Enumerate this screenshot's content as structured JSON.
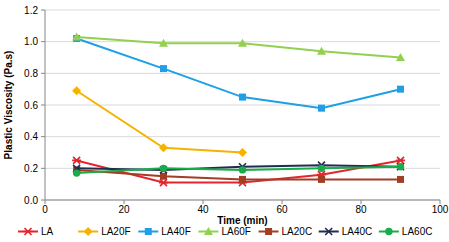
{
  "chart_data": {
    "type": "line",
    "x_label": "Time (min)",
    "y_label": "Plastic Viscosity (Pa.s)",
    "xlim": [
      0,
      100
    ],
    "xticks": [
      0,
      20,
      40,
      60,
      80,
      100
    ],
    "ylim": [
      0,
      1.2
    ],
    "yticks": [
      {
        "value": 0,
        "label": "0.0"
      },
      0.2,
      0.4,
      0.6,
      0.8,
      {
        "value": 1,
        "label": "1.0"
      },
      1.2
    ],
    "grid": true,
    "legend": "bottom",
    "x": [
      8,
      30,
      50,
      70,
      90
    ],
    "series": [
      {
        "name": "LA",
        "color": "#e3262d",
        "marker": "asterisk",
        "line_style": "solid",
        "values": [
          0.25,
          0.11,
          0.11,
          0.16,
          0.25
        ]
      },
      {
        "name": "LA20F",
        "color": "#f5b300",
        "marker": "diamond",
        "line_style": "solid",
        "values": [
          0.69,
          0.33,
          0.3,
          null,
          null
        ]
      },
      {
        "name": "LA40F",
        "color": "#1e9fe6",
        "marker": "square",
        "line_style": "solid",
        "values": [
          1.02,
          0.83,
          0.65,
          0.58,
          0.7
        ]
      },
      {
        "name": "LA60F",
        "color": "#92d050",
        "marker": "triangle",
        "line_style": "solid",
        "values": [
          1.03,
          0.99,
          0.99,
          0.94,
          0.9
        ]
      },
      {
        "name": "LA20C",
        "color": "#a33d24",
        "marker": "square",
        "line_style": "solid",
        "values": [
          0.19,
          0.15,
          0.13,
          0.13,
          0.13
        ]
      },
      {
        "name": "LA40C",
        "color": "#1f2d4e",
        "marker": "x",
        "line_style": "solid",
        "values": [
          0.2,
          0.19,
          0.21,
          0.22,
          0.21
        ]
      },
      {
        "name": "LA60C",
        "color": "#1aab4a",
        "marker": "circle",
        "line_style": "solid",
        "values": [
          0.17,
          0.2,
          0.19,
          0.2,
          0.21
        ]
      }
    ]
  }
}
